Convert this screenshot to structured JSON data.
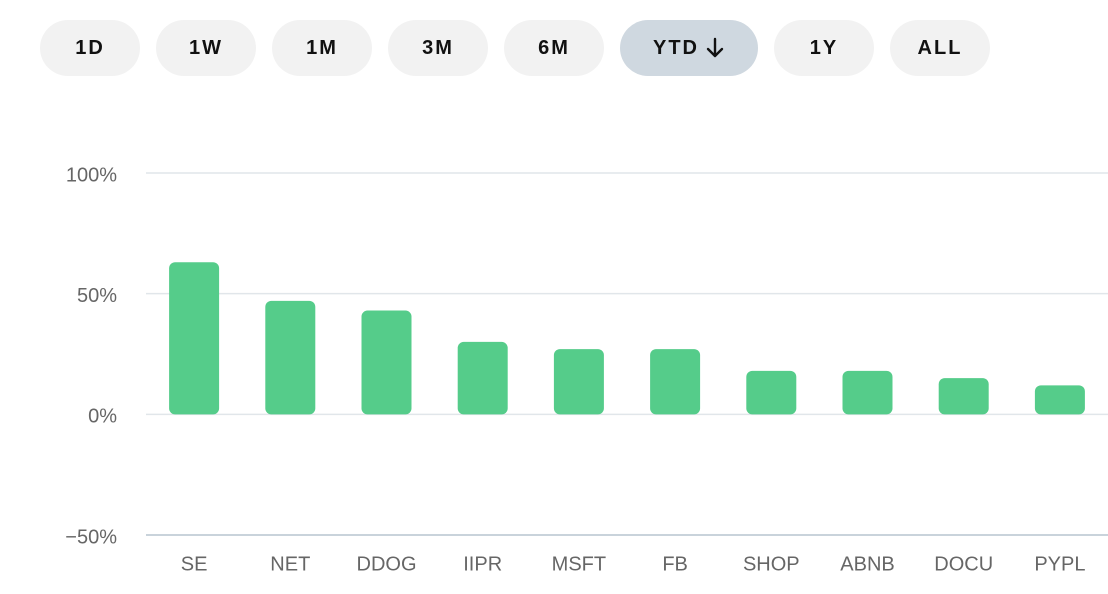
{
  "buttons": [
    "1D",
    "1W",
    "1M",
    "3M",
    "6M",
    "YTD",
    "1Y",
    "ALL"
  ],
  "chart_data": {
    "type": "bar",
    "categories": [
      "SE",
      "NET",
      "DDOG",
      "IIPR",
      "MSFT",
      "FB",
      "SHOP",
      "ABNB",
      "DOCU",
      "PYPL"
    ],
    "values": [
      63,
      47,
      43,
      30,
      27,
      27,
      18,
      18,
      15,
      12
    ],
    "color": "#55cc8a",
    "ylim": [
      -50,
      100
    ],
    "yticks": [
      {
        "value": -50,
        "label": "−50%"
      },
      {
        "value": 0,
        "label": "0%"
      },
      {
        "value": 50,
        "label": "50%"
      },
      {
        "value": 100,
        "label": "100%"
      }
    ],
    "grid": true
  }
}
